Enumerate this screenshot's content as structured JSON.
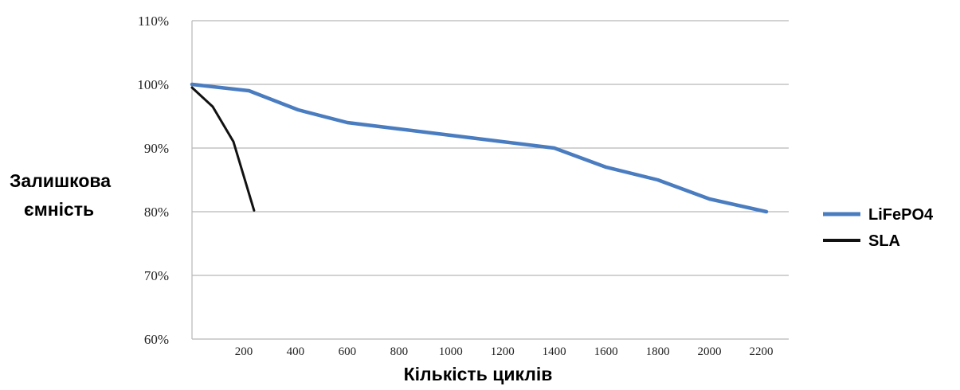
{
  "chart_data": {
    "type": "line",
    "xlabel": "Кількість циклів",
    "ylabel_lines": [
      "Залишкова",
      "ємність"
    ],
    "xlim": [
      0,
      2300
    ],
    "ylim": [
      60,
      110
    ],
    "yticks": [
      60,
      70,
      80,
      90,
      100,
      110
    ],
    "ytick_labels": [
      "60%",
      "70%",
      "80%",
      "90%",
      "100%",
      "110%"
    ],
    "xticks": [
      200,
      400,
      600,
      800,
      1000,
      1200,
      1400,
      1600,
      1800,
      2000,
      2200
    ],
    "xtick_labels": [
      "200",
      "400",
      "600",
      "800",
      "1000",
      "1200",
      "1400",
      "1600",
      "1800",
      "2000",
      "2200"
    ],
    "grid": true,
    "legend_position": "right",
    "series": [
      {
        "name": "LiFePO4",
        "color": "#4a7cc0",
        "x": [
          0,
          220,
          410,
          600,
          800,
          1000,
          1200,
          1400,
          1600,
          1800,
          2000,
          2220
        ],
        "y": [
          100,
          99,
          96,
          94,
          93,
          92,
          91,
          90,
          87,
          85,
          82,
          80
        ]
      },
      {
        "name": "SLA",
        "color": "#111111",
        "x": [
          0,
          80,
          160,
          240
        ],
        "y": [
          99.5,
          96.5,
          91,
          80.2
        ]
      }
    ]
  }
}
